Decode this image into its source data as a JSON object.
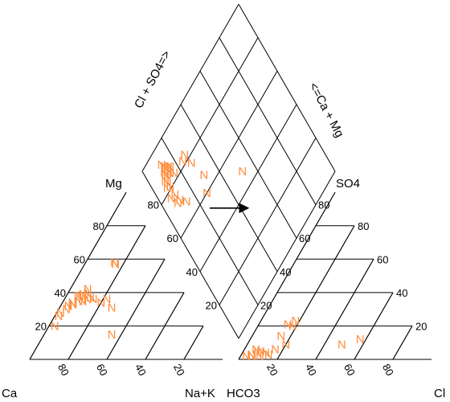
{
  "chart_data": {
    "type": "scatter",
    "subtype": "piper-diagram",
    "marker": "N",
    "marker_color": "#ff8c3c",
    "line_color": "#000000",
    "grid_interval": 20,
    "tick_values": [
      20,
      40,
      60,
      80
    ],
    "labels": {
      "ca": "Ca",
      "na_k": "Na+K",
      "hco3": "HCO3",
      "cl": "Cl",
      "mg": "Mg",
      "so4": "SO4",
      "cl_so4": "Cl + SO4=>",
      "ca_mg": "<=Ca + Mg"
    },
    "cation_points": [
      {
        "mg": 20,
        "na_k": 3
      },
      {
        "mg": 26,
        "na_k": 2
      },
      {
        "mg": 28,
        "na_k": 2
      },
      {
        "mg": 30,
        "na_k": 4
      },
      {
        "mg": 32,
        "na_k": 4
      },
      {
        "mg": 33,
        "na_k": 6
      },
      {
        "mg": 34,
        "na_k": 5
      },
      {
        "mg": 35,
        "na_k": 8
      },
      {
        "mg": 36,
        "na_k": 12
      },
      {
        "mg": 38,
        "na_k": 6
      },
      {
        "mg": 38,
        "na_k": 7
      },
      {
        "mg": 39,
        "na_k": 8
      },
      {
        "mg": 40,
        "na_k": 10
      },
      {
        "mg": 36,
        "na_k": 15
      },
      {
        "mg": 34,
        "na_k": 20
      },
      {
        "mg": 36,
        "na_k": 22
      },
      {
        "mg": 31,
        "na_k": 27
      },
      {
        "mg": 15,
        "na_k": 35
      },
      {
        "mg": 35,
        "na_k": 10
      },
      {
        "mg": 42,
        "na_k": 9
      },
      {
        "mg": 37,
        "na_k": 13
      },
      {
        "mg": 57,
        "na_k": 16
      },
      {
        "mg": 58,
        "na_k": 15
      }
    ],
    "anion_points": [
      {
        "cl": 3,
        "so4": 2
      },
      {
        "cl": 5,
        "so4": 3
      },
      {
        "cl": 6,
        "so4": 2
      },
      {
        "cl": 8,
        "so4": 4
      },
      {
        "cl": 10,
        "so4": 2
      },
      {
        "cl": 12,
        "so4": 4
      },
      {
        "cl": 9,
        "so4": 5
      },
      {
        "cl": 6,
        "so4": 6
      },
      {
        "cl": 14,
        "so4": 3
      },
      {
        "cl": 16,
        "so4": 6
      },
      {
        "cl": 15,
        "so4": 14
      },
      {
        "cl": 15,
        "so4": 21
      },
      {
        "cl": 18,
        "so4": 20
      },
      {
        "cl": 18,
        "so4": 23
      },
      {
        "cl": 20,
        "so4": 9
      },
      {
        "cl": 49,
        "so4": 9
      },
      {
        "cl": 57,
        "so4": 12
      }
    ],
    "diamond_points": [
      {
        "cl_so4": 28,
        "ca_mg": 77
      },
      {
        "cl_so4": 27,
        "ca_mg": 83
      },
      {
        "cl_so4": 24,
        "ca_mg": 82
      },
      {
        "cl_so4": 31,
        "ca_mg": 67
      },
      {
        "cl_so4": 16,
        "ca_mg": 83
      },
      {
        "cl_so4": 16,
        "ca_mg": 87
      },
      {
        "cl_so4": 13,
        "ca_mg": 89
      },
      {
        "cl_so4": 15,
        "ca_mg": 88
      },
      {
        "cl_so4": 12,
        "ca_mg": 86
      },
      {
        "cl_so4": 13,
        "ca_mg": 90
      },
      {
        "cl_so4": 14,
        "ca_mg": 88
      },
      {
        "cl_so4": 12,
        "ca_mg": 92
      },
      {
        "cl_so4": 11,
        "ca_mg": 87
      },
      {
        "cl_so4": 14,
        "ca_mg": 85
      },
      {
        "cl_so4": 11,
        "ca_mg": 88
      },
      {
        "cl_so4": 10,
        "ca_mg": 84
      },
      {
        "cl_so4": 9,
        "ca_mg": 85
      },
      {
        "cl_so4": 10,
        "ca_mg": 81
      },
      {
        "cl_so4": 8,
        "ca_mg": 82
      },
      {
        "cl_so4": 7,
        "ca_mg": 77
      },
      {
        "cl_so4": 10,
        "ca_mg": 76
      },
      {
        "cl_so4": 9,
        "ca_mg": 72
      },
      {
        "cl_so4": 11,
        "ca_mg": 72
      },
      {
        "cl_so4": 14,
        "ca_mg": 68
      },
      {
        "cl_so4": 27,
        "ca_mg": 60
      },
      {
        "cl_so4": 52,
        "ca_mg": 48
      }
    ],
    "arrow": {
      "from": {
        "cl_so4": 24,
        "ca_mg": 54
      },
      "to": {
        "cl_so4": 44,
        "ca_mg": 34
      }
    }
  }
}
